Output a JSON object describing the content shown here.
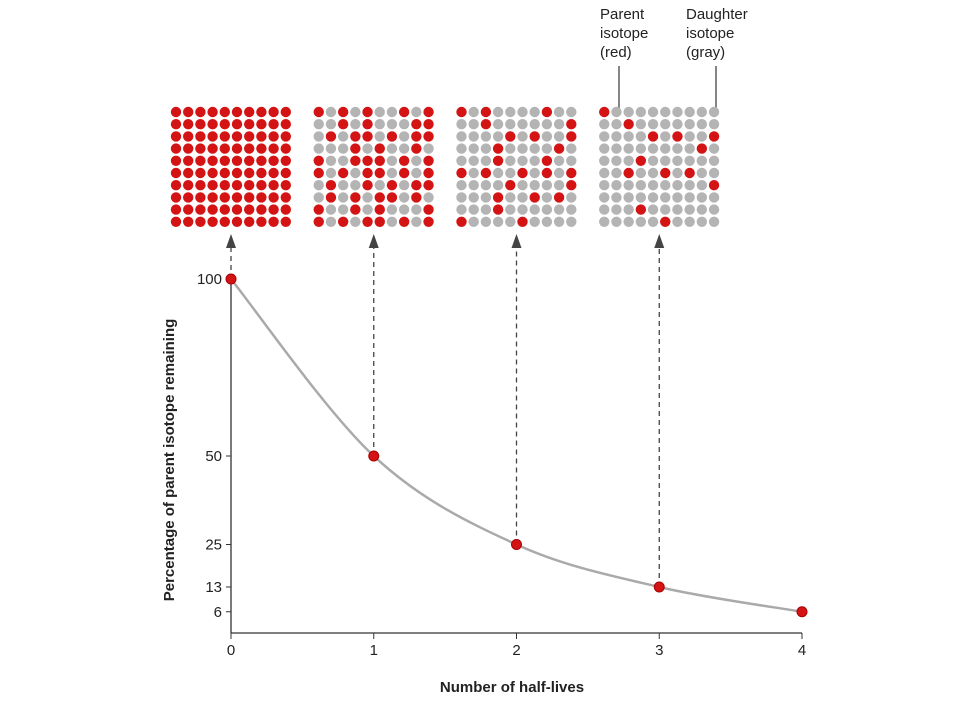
{
  "chart_data": {
    "type": "line",
    "x": [
      0,
      1,
      2,
      3,
      4
    ],
    "values": [
      100,
      50,
      25,
      13,
      6
    ],
    "xlim": [
      0,
      4
    ],
    "xticks": [
      0,
      1,
      2,
      3,
      4
    ],
    "ylim": [
      0,
      100
    ],
    "yticks": [
      6,
      13,
      25,
      50,
      100
    ],
    "xlabel": "Number of half-lives",
    "ylabel": "Percentage of parent isotope remaining",
    "color": "#aaaaaa",
    "marker_color": "#d41414",
    "daughter_color": "#b4b4b4",
    "annotations": [
      "Parent isotope (red)",
      "Daughter isotope (gray)"
    ]
  }
}
